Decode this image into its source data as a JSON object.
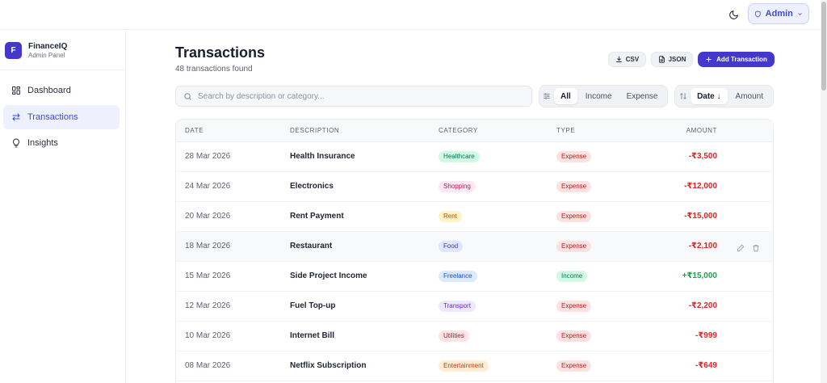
{
  "topbar": {
    "theme_icon": "moon-icon",
    "admin_label": "Admin"
  },
  "sidebar": {
    "brand_initial": "F",
    "brand_name": "FinanceIQ",
    "brand_sub": "Admin Panel",
    "items": [
      {
        "label": "Dashboard",
        "icon": "dashboard-icon",
        "active": false
      },
      {
        "label": "Transactions",
        "icon": "arrows-swap-icon",
        "active": true
      },
      {
        "label": "Insights",
        "icon": "lightbulb-icon",
        "active": false
      }
    ]
  },
  "main": {
    "title": "Transactions",
    "subtitle": "48 transactions found",
    "csv_label": "CSV",
    "json_label": "JSON",
    "add_label": "Add Transaction",
    "search_placeholder": "Search by description or category...",
    "type_filter": {
      "options": [
        "All",
        "Income",
        "Expense"
      ],
      "selected": "All"
    },
    "sort": {
      "options": [
        "Date",
        "Amount"
      ],
      "selected": "Date",
      "direction_glyph": "↓"
    }
  },
  "table": {
    "columns": [
      "DATE",
      "DESCRIPTION",
      "CATEGORY",
      "TYPE",
      "AMOUNT"
    ],
    "rows": [
      {
        "date": "28 Mar 2026",
        "description": "Health Insurance",
        "category": "Healthcare",
        "type": "Expense",
        "amount": "-₹3,500"
      },
      {
        "date": "24 Mar 2026",
        "description": "Electronics",
        "category": "Shopping",
        "type": "Expense",
        "amount": "-₹12,000"
      },
      {
        "date": "20 Mar 2026",
        "description": "Rent Payment",
        "category": "Rent",
        "type": "Expense",
        "amount": "-₹15,000"
      },
      {
        "date": "18 Mar 2026",
        "description": "Restaurant",
        "category": "Food",
        "type": "Expense",
        "amount": "-₹2,100"
      },
      {
        "date": "15 Mar 2026",
        "description": "Side Project Income",
        "category": "Freelance",
        "type": "Income",
        "amount": "+₹15,000"
      },
      {
        "date": "12 Mar 2026",
        "description": "Fuel Top-up",
        "category": "Transport",
        "type": "Expense",
        "amount": "-₹2,200"
      },
      {
        "date": "10 Mar 2026",
        "description": "Internet Bill",
        "category": "Utilities",
        "type": "Expense",
        "amount": "-₹999"
      },
      {
        "date": "08 Mar 2026",
        "description": "Netflix Subscription",
        "category": "Entertainment",
        "type": "Expense",
        "amount": "-₹649"
      }
    ]
  },
  "colors": {
    "accent": "#4338ca",
    "expense_text": "#dc2626",
    "income_text": "#16a34a",
    "category": {
      "Healthcare": {
        "bg": "#d1fae5",
        "fg": "#047857"
      },
      "Shopping": {
        "bg": "#fce7f3",
        "fg": "#be185d"
      },
      "Rent": {
        "bg": "#fef3c7",
        "fg": "#b45309"
      },
      "Food": {
        "bg": "#e0e7ff",
        "fg": "#4338ca"
      },
      "Freelance": {
        "bg": "#dbeafe",
        "fg": "#1d4ed8"
      },
      "Transport": {
        "bg": "#ede9fe",
        "fg": "#6d28d9"
      },
      "Utilities": {
        "bg": "#ffe4e6",
        "fg": "#be123c"
      },
      "Entertainment": {
        "bg": "#ffedd5",
        "fg": "#c2410c"
      }
    },
    "type": {
      "Expense": {
        "bg": "#fee2e2",
        "fg": "#b91c1c"
      },
      "Income": {
        "bg": "#d1fae5",
        "fg": "#047857"
      }
    }
  }
}
